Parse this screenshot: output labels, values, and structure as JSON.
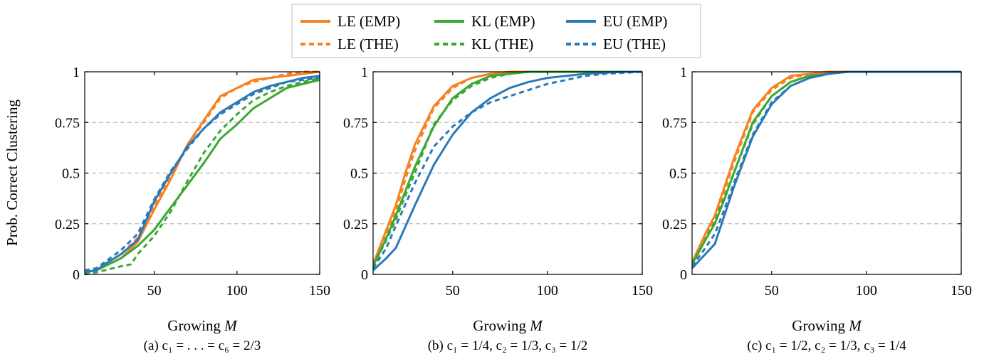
{
  "colors": {
    "LE": "#f5821f",
    "KL": "#3aa832",
    "EU": "#2a7ab8",
    "grid": "#bdbdbd"
  },
  "legend": {
    "position": "top-center",
    "entries": [
      {
        "label": "LE (EMP)",
        "method": "LE",
        "style": "solid"
      },
      {
        "label": "KL (EMP)",
        "method": "KL",
        "style": "solid"
      },
      {
        "label": "EU (EMP)",
        "method": "EU",
        "style": "solid"
      },
      {
        "label": "LE (THE)",
        "method": "LE",
        "style": "dashed"
      },
      {
        "label": "KL (THE)",
        "method": "KL",
        "style": "dashed"
      },
      {
        "label": "EU (THE)",
        "method": "EU",
        "style": "dashed"
      }
    ]
  },
  "ylabel": "Prob. Correct Clustering",
  "chart_data": [
    {
      "type": "line",
      "caption": "(a) c₁ = . . . = c₆ = 2/3",
      "xlabel": "Growing M",
      "xlim": [
        8,
        150
      ],
      "ylim": [
        0,
        1
      ],
      "xticks": [
        50,
        100,
        150
      ],
      "yticks": [
        0,
        0.25,
        0.5,
        0.75,
        1
      ],
      "ytick_labels": [
        "0",
        "0.25",
        "0.5",
        "0.75",
        "1"
      ],
      "grid": "horizontal dashed",
      "series": [
        {
          "name": "LE (EMP)",
          "method": "LE",
          "style": "solid",
          "x": [
            8,
            15,
            20,
            30,
            40,
            50,
            60,
            70,
            80,
            90,
            100,
            110,
            120,
            130,
            140,
            150
          ],
          "y": [
            0.01,
            0.02,
            0.04,
            0.08,
            0.16,
            0.32,
            0.47,
            0.64,
            0.76,
            0.88,
            0.92,
            0.96,
            0.97,
            0.98,
            0.99,
            1.0
          ]
        },
        {
          "name": "LE (THE)",
          "method": "LE",
          "style": "dashed",
          "x": [
            8,
            15,
            20,
            30,
            40,
            50,
            60,
            70,
            80,
            90,
            100,
            110,
            120,
            130,
            140,
            150
          ],
          "y": [
            0.01,
            0.02,
            0.05,
            0.1,
            0.18,
            0.34,
            0.48,
            0.64,
            0.75,
            0.87,
            0.92,
            0.95,
            0.97,
            0.99,
            1.0,
            1.0
          ]
        },
        {
          "name": "KL (EMP)",
          "method": "KL",
          "style": "solid",
          "x": [
            8,
            15,
            20,
            30,
            40,
            50,
            60,
            70,
            80,
            90,
            100,
            110,
            120,
            130,
            140,
            150
          ],
          "y": [
            0.01,
            0.02,
            0.04,
            0.08,
            0.14,
            0.22,
            0.33,
            0.44,
            0.55,
            0.67,
            0.74,
            0.82,
            0.87,
            0.92,
            0.94,
            0.96
          ]
        },
        {
          "name": "KL (THE)",
          "method": "KL",
          "style": "dashed",
          "x": [
            8,
            15,
            20,
            30,
            36,
            40,
            50,
            60,
            70,
            80,
            90,
            100,
            110,
            120,
            130,
            140,
            150
          ],
          "y": [
            0.0,
            0.01,
            0.02,
            0.04,
            0.05,
            0.1,
            0.19,
            0.31,
            0.46,
            0.6,
            0.71,
            0.79,
            0.86,
            0.9,
            0.93,
            0.95,
            0.97
          ]
        },
        {
          "name": "EU (EMP)",
          "method": "EU",
          "style": "solid",
          "x": [
            8,
            15,
            20,
            30,
            40,
            50,
            60,
            70,
            80,
            90,
            100,
            110,
            120,
            130,
            140,
            150
          ],
          "y": [
            0.01,
            0.02,
            0.05,
            0.1,
            0.17,
            0.36,
            0.5,
            0.63,
            0.72,
            0.8,
            0.85,
            0.9,
            0.93,
            0.95,
            0.97,
            0.98
          ]
        },
        {
          "name": "EU (THE)",
          "method": "EU",
          "style": "dashed",
          "x": [
            8,
            15,
            20,
            30,
            40,
            50,
            60,
            70,
            80,
            90,
            100,
            110,
            120,
            130,
            140,
            150
          ],
          "y": [
            0.02,
            0.03,
            0.06,
            0.12,
            0.2,
            0.37,
            0.51,
            0.62,
            0.72,
            0.79,
            0.84,
            0.89,
            0.92,
            0.95,
            0.96,
            0.97
          ]
        }
      ]
    },
    {
      "type": "line",
      "caption": "(b) c₁ = 1/4, c₂ = 1/3, c₃ = 1/2",
      "xlabel": "Growing M",
      "xlim": [
        8,
        150
      ],
      "ylim": [
        0,
        1
      ],
      "xticks": [
        50,
        100,
        150
      ],
      "yticks": [
        0,
        0.25,
        0.5,
        0.75,
        1
      ],
      "ytick_labels": [
        "0",
        "0.25",
        "0.5",
        "0.75",
        "1"
      ],
      "grid": "horizontal dashed",
      "series": [
        {
          "name": "LE (EMP)",
          "method": "LE",
          "style": "solid",
          "x": [
            8,
            15,
            20,
            25,
            30,
            40,
            50,
            60,
            70,
            80,
            90,
            100,
            150
          ],
          "y": [
            0.05,
            0.22,
            0.34,
            0.5,
            0.64,
            0.83,
            0.93,
            0.97,
            0.99,
            1.0,
            1.0,
            1.0,
            1.0
          ]
        },
        {
          "name": "LE (THE)",
          "method": "LE",
          "style": "dashed",
          "x": [
            8,
            15,
            20,
            25,
            30,
            40,
            50,
            60,
            70,
            80,
            90,
            100,
            150
          ],
          "y": [
            0.05,
            0.2,
            0.31,
            0.47,
            0.61,
            0.82,
            0.92,
            0.97,
            0.99,
            1.0,
            1.0,
            1.0,
            1.0
          ]
        },
        {
          "name": "KL (EMP)",
          "method": "KL",
          "style": "solid",
          "x": [
            8,
            15,
            20,
            25,
            30,
            40,
            50,
            60,
            70,
            80,
            90,
            100,
            150
          ],
          "y": [
            0.04,
            0.18,
            0.29,
            0.41,
            0.53,
            0.73,
            0.87,
            0.94,
            0.98,
            0.99,
            1.0,
            1.0,
            1.0
          ]
        },
        {
          "name": "KL (THE)",
          "method": "KL",
          "style": "dashed",
          "x": [
            8,
            15,
            20,
            25,
            30,
            40,
            50,
            60,
            70,
            80,
            90,
            100,
            150
          ],
          "y": [
            0.04,
            0.17,
            0.27,
            0.39,
            0.5,
            0.74,
            0.86,
            0.93,
            0.97,
            0.99,
            1.0,
            1.0,
            1.0
          ]
        },
        {
          "name": "EU (EMP)",
          "method": "EU",
          "style": "solid",
          "x": [
            8,
            15,
            20,
            30,
            40,
            50,
            60,
            70,
            80,
            90,
            100,
            110,
            120,
            130,
            140,
            150
          ],
          "y": [
            0.02,
            0.08,
            0.13,
            0.34,
            0.54,
            0.69,
            0.8,
            0.87,
            0.92,
            0.95,
            0.97,
            0.98,
            0.99,
            0.995,
            1.0,
            1.0
          ]
        },
        {
          "name": "EU (THE)",
          "method": "EU",
          "style": "dashed",
          "x": [
            8,
            15,
            20,
            30,
            40,
            50,
            60,
            70,
            80,
            90,
            100,
            110,
            120,
            130,
            140,
            150
          ],
          "y": [
            0.03,
            0.13,
            0.24,
            0.45,
            0.63,
            0.73,
            0.8,
            0.85,
            0.88,
            0.91,
            0.94,
            0.96,
            0.98,
            0.99,
            0.995,
            1.0
          ]
        }
      ]
    },
    {
      "type": "line",
      "caption": "(c) c₁ = 1/2, c₂ = 1/3, c₃ = 1/4",
      "xlabel": "Growing M",
      "xlim": [
        8,
        150
      ],
      "ylim": [
        0,
        1
      ],
      "xticks": [
        50,
        100,
        150
      ],
      "yticks": [
        0,
        0.25,
        0.5,
        0.75,
        1
      ],
      "ytick_labels": [
        "0",
        "0.25",
        "0.5",
        "0.75",
        "1"
      ],
      "grid": "horizontal dashed",
      "series": [
        {
          "name": "LE (EMP)",
          "method": "LE",
          "style": "solid",
          "x": [
            8,
            15,
            20,
            25,
            30,
            40,
            50,
            60,
            70,
            80,
            150
          ],
          "y": [
            0.06,
            0.2,
            0.29,
            0.43,
            0.57,
            0.81,
            0.92,
            0.98,
            0.99,
            1.0,
            1.0
          ]
        },
        {
          "name": "LE (THE)",
          "method": "LE",
          "style": "dashed",
          "x": [
            8,
            15,
            20,
            25,
            30,
            40,
            50,
            60,
            70,
            80,
            150
          ],
          "y": [
            0.05,
            0.18,
            0.27,
            0.41,
            0.55,
            0.8,
            0.91,
            0.97,
            0.99,
            1.0,
            1.0
          ]
        },
        {
          "name": "KL (EMP)",
          "method": "KL",
          "style": "solid",
          "x": [
            8,
            15,
            20,
            25,
            30,
            40,
            50,
            60,
            70,
            80,
            90,
            150
          ],
          "y": [
            0.05,
            0.17,
            0.25,
            0.37,
            0.5,
            0.75,
            0.88,
            0.95,
            0.98,
            0.99,
            1.0,
            1.0
          ]
        },
        {
          "name": "KL (THE)",
          "method": "KL",
          "style": "dashed",
          "x": [
            8,
            15,
            20,
            25,
            30,
            40,
            50,
            60,
            70,
            80,
            90,
            150
          ],
          "y": [
            0.05,
            0.17,
            0.26,
            0.38,
            0.5,
            0.74,
            0.88,
            0.95,
            0.98,
            0.99,
            1.0,
            1.0
          ]
        },
        {
          "name": "EU (EMP)",
          "method": "EU",
          "style": "solid",
          "x": [
            8,
            15,
            20,
            25,
            30,
            40,
            50,
            60,
            70,
            80,
            90,
            100,
            150
          ],
          "y": [
            0.03,
            0.1,
            0.15,
            0.29,
            0.43,
            0.68,
            0.84,
            0.93,
            0.97,
            0.99,
            1.0,
            1.0,
            1.0
          ]
        },
        {
          "name": "EU (THE)",
          "method": "EU",
          "style": "dashed",
          "x": [
            8,
            15,
            20,
            25,
            30,
            40,
            50,
            60,
            70,
            80,
            90,
            100,
            150
          ],
          "y": [
            0.04,
            0.13,
            0.2,
            0.32,
            0.45,
            0.69,
            0.85,
            0.93,
            0.97,
            0.99,
            1.0,
            1.0,
            1.0
          ]
        }
      ]
    }
  ]
}
